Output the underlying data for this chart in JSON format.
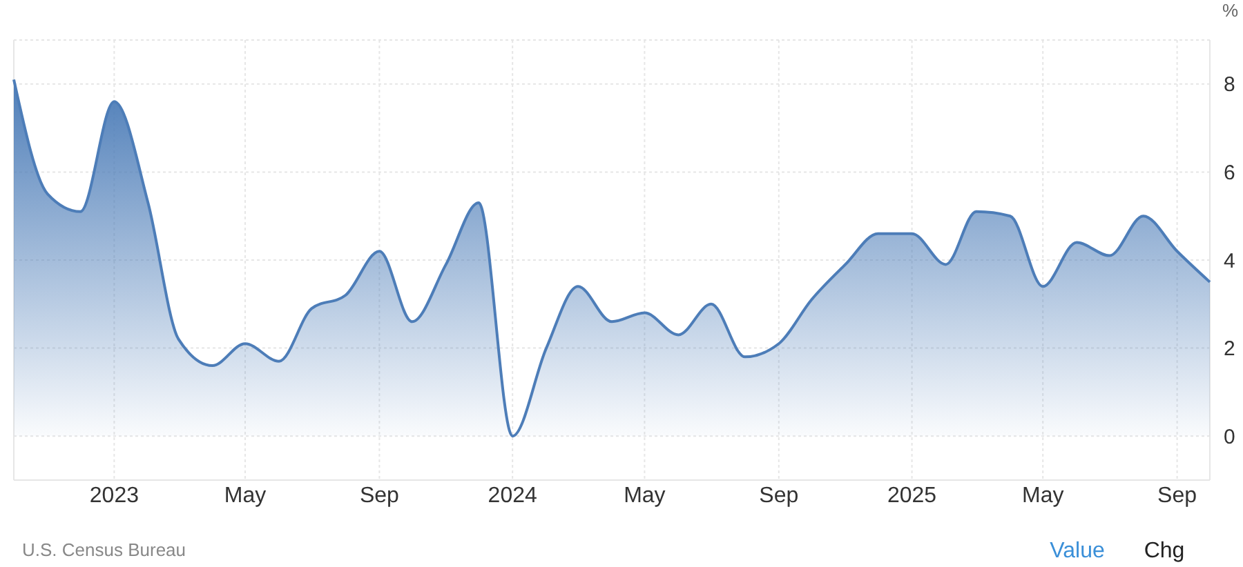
{
  "chart_data": {
    "type": "area",
    "ylabel": "%",
    "x": [
      "2022-10",
      "2022-11",
      "2022-12",
      "2023-01",
      "2023-02",
      "2023-03",
      "2023-04",
      "2023-05",
      "2023-06",
      "2023-07",
      "2023-08",
      "2023-09",
      "2023-10",
      "2023-11",
      "2023-12",
      "2024-01",
      "2024-02",
      "2024-03",
      "2024-04",
      "2024-05",
      "2024-06",
      "2024-07",
      "2024-08",
      "2024-09",
      "2024-10",
      "2024-11",
      "2024-12",
      "2025-01",
      "2025-02",
      "2025-03",
      "2025-04",
      "2025-05",
      "2025-06",
      "2025-07",
      "2025-08",
      "2025-09",
      "2025-10"
    ],
    "series": [
      {
        "color": "#4d7db8",
        "values": [
          8.1,
          5.5,
          5.1,
          7.6,
          5.3,
          2.2,
          1.6,
          2.1,
          1.7,
          2.9,
          3.2,
          4.2,
          2.6,
          3.9,
          5.3,
          0.0,
          2.0,
          3.4,
          2.6,
          2.8,
          2.3,
          3.0,
          1.8,
          2.1,
          3.1,
          3.9,
          4.6,
          4.6,
          3.9,
          5.1,
          5.0,
          3.4,
          4.4,
          4.1,
          5.0,
          4.2,
          3.5
        ]
      }
    ],
    "xlim": [
      "2022-10",
      "2025-10"
    ],
    "xticks": [
      {
        "value": "2023-01",
        "label": "2023"
      },
      {
        "value": "2023-05",
        "label": "May"
      },
      {
        "value": "2023-09",
        "label": "Sep"
      },
      {
        "value": "2024-01",
        "label": "2024"
      },
      {
        "value": "2024-05",
        "label": "May"
      },
      {
        "value": "2024-09",
        "label": "Sep"
      },
      {
        "value": "2025-01",
        "label": "2025"
      },
      {
        "value": "2025-05",
        "label": "May"
      },
      {
        "value": "2025-09",
        "label": "Sep"
      }
    ],
    "ylim": [
      -1,
      9
    ],
    "yticks": [
      0,
      2,
      4,
      6,
      8,
      {
        "value": 9,
        "label": null
      }
    ],
    "grid": true,
    "marker": "none",
    "line_style": "solid",
    "annotations": [
      "U.S. Census Bureau",
      "Value",
      "Chg"
    ]
  }
}
